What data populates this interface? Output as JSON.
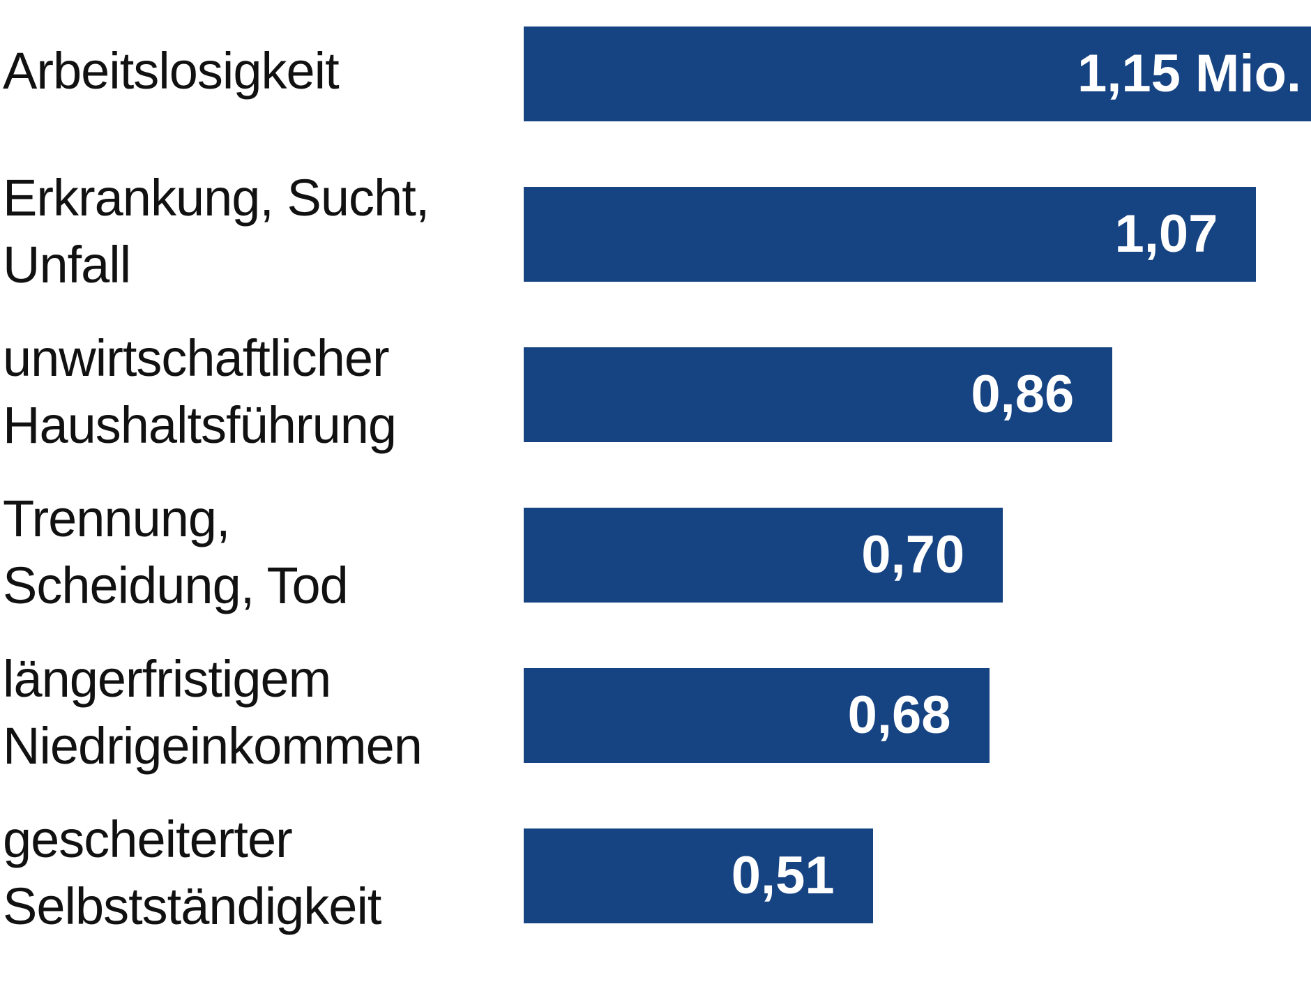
{
  "chart_data": {
    "type": "bar",
    "orientation": "horizontal",
    "categories": [
      [
        "Arbeitslosigkeit"
      ],
      [
        "Erkrankung, Sucht,",
        "Unfall"
      ],
      [
        "unwirtschaftlicher",
        "Haushaltsführung"
      ],
      [
        "Trennung,",
        "Scheidung, Tod"
      ],
      [
        "längerfristigem",
        "Niedrigeinkommen"
      ],
      [
        "gescheiterter",
        "Selbstständigkeit"
      ]
    ],
    "values": [
      1.15,
      1.07,
      0.86,
      0.7,
      0.68,
      0.51
    ],
    "value_labels": [
      "1,15 Mio.",
      "1,07",
      "0,86",
      "0,70",
      "0,68",
      "0,51"
    ],
    "unit": "Mio.",
    "bar_color": "#164382",
    "grid": false
  }
}
